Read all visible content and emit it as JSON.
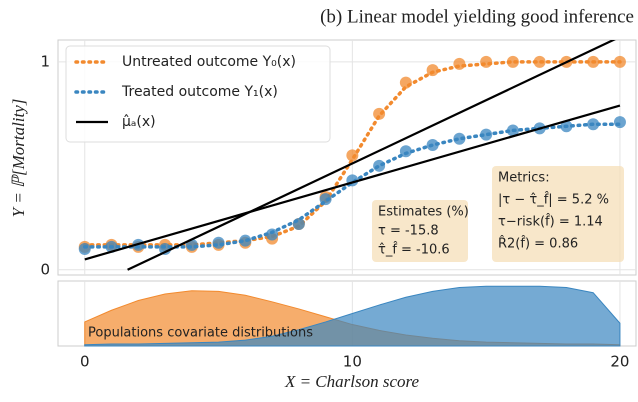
{
  "chart_data": [
    {
      "type": "scatter",
      "title": "(b) Linear model yielding good inference",
      "y_label": "Y = ℙ[Mortality]",
      "xlim": [
        -1,
        20.6
      ],
      "ylim": [
        -0.025,
        1.105
      ],
      "yticks": [
        0,
        1
      ],
      "grid": true,
      "legend": "upper left",
      "series": [
        {
          "name": "Untreated outcome Y₀(x)",
          "color": "#f28a2e",
          "x": [
            0,
            1,
            2,
            3,
            4,
            5,
            6,
            7,
            8,
            9,
            10,
            11,
            12,
            13,
            14,
            15,
            16,
            17,
            18,
            19,
            20
          ],
          "values": [
            0.12,
            0.12,
            0.12,
            0.12,
            0.12,
            0.13,
            0.14,
            0.16,
            0.21,
            0.33,
            0.53,
            0.74,
            0.88,
            0.95,
            0.98,
            0.99,
            1,
            1,
            1,
            1,
            1
          ],
          "points": [
            0.11,
            0.12,
            0.11,
            0.12,
            0.11,
            0.12,
            0.13,
            0.15,
            0.22,
            0.35,
            0.55,
            0.75,
            0.9,
            0.96,
            0.99,
            1,
            1,
            1,
            1,
            1,
            1
          ]
        },
        {
          "name": "Treated outcome Y₁(x)",
          "color": "#3a86c0",
          "x": [
            0,
            1,
            2,
            3,
            4,
            5,
            6,
            7,
            8,
            9,
            10,
            11,
            12,
            13,
            14,
            15,
            16,
            17,
            18,
            19,
            20
          ],
          "values": [
            0.11,
            0.11,
            0.11,
            0.11,
            0.11,
            0.12,
            0.14,
            0.18,
            0.24,
            0.33,
            0.42,
            0.5,
            0.56,
            0.6,
            0.63,
            0.65,
            0.67,
            0.68,
            0.69,
            0.7,
            0.7
          ],
          "points": [
            0.1,
            0.11,
            0.12,
            0.1,
            0.12,
            0.13,
            0.14,
            0.17,
            0.22,
            0.34,
            0.43,
            0.5,
            0.57,
            0.6,
            0.63,
            0.65,
            0.67,
            0.68,
            0.69,
            0.7,
            0.71
          ]
        }
      ],
      "fits": [
        {
          "name": "μ̂ₐ(x)",
          "color": "#000000",
          "x": [
            0,
            20
          ],
          "values": [
            0.05,
            0.79
          ]
        },
        {
          "color": "#000000",
          "x": [
            1.6,
            20
          ],
          "values": [
            0,
            1.12
          ]
        }
      ],
      "annotations": [
        {
          "lines": [
            "Estimates (%)",
            "τ = -15.8",
            "τ̂_f̂ = -10.6"
          ]
        },
        {
          "lines": [
            "Metrics:",
            "|τ − τ̂_f̂| = 5.2 %",
            "τ−risk(f̂) = 1.14",
            "R̂2(f̂) = 0.86"
          ]
        }
      ]
    },
    {
      "type": "area",
      "annotation": "Populations covariate distributions",
      "x_label": "X = Charlson score",
      "xlim": [
        -1,
        20.6
      ],
      "ylim": [
        0,
        1
      ],
      "xticks": [
        0,
        10,
        20
      ],
      "series": [
        {
          "color": "#f28a2e",
          "x": [
            0,
            1,
            2,
            3,
            4,
            5,
            6,
            7,
            8,
            9,
            10,
            11,
            12,
            13,
            14,
            15,
            16,
            17,
            18,
            19,
            20
          ],
          "values": [
            0.37,
            0.55,
            0.7,
            0.8,
            0.85,
            0.84,
            0.78,
            0.68,
            0.57,
            0.45,
            0.33,
            0.24,
            0.17,
            0.12,
            0.08,
            0.06,
            0.05,
            0.04,
            0.03,
            0.03,
            0.02
          ]
        },
        {
          "color": "#3a86c0",
          "x": [
            0,
            1,
            2,
            3,
            4,
            5,
            6,
            7,
            8,
            9,
            10,
            11,
            12,
            13,
            14,
            15,
            16,
            17,
            18,
            19,
            20
          ],
          "values": [
            0.02,
            0.03,
            0.03,
            0.04,
            0.05,
            0.06,
            0.09,
            0.15,
            0.25,
            0.37,
            0.5,
            0.63,
            0.75,
            0.84,
            0.9,
            0.92,
            0.92,
            0.92,
            0.9,
            0.82,
            0.35
          ]
        }
      ]
    }
  ]
}
